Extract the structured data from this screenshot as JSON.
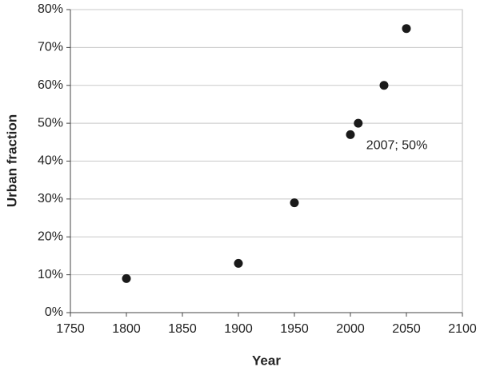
{
  "chart_data": {
    "type": "scatter",
    "x_label": "Year",
    "y_label": "Urban fraction",
    "x": [
      1800,
      1900,
      1950,
      2000,
      2007,
      2030,
      2050
    ],
    "values": [
      9,
      13,
      29,
      47,
      50,
      60,
      75
    ],
    "color": "#1a1a1a",
    "annotation": "2007; 50%",
    "xlim": [
      1750,
      2100
    ],
    "xticks": [
      1750,
      1800,
      1850,
      1900,
      1950,
      2000,
      2050,
      2100
    ],
    "ylim": [
      0,
      80
    ],
    "yticks": [
      {
        "value": 0,
        "label": "0%"
      },
      {
        "value": 10,
        "label": "10%"
      },
      {
        "value": 20,
        "label": "20%"
      },
      {
        "value": 30,
        "label": "30%"
      },
      {
        "value": 40,
        "label": "40%"
      },
      {
        "value": 50,
        "label": "50%"
      },
      {
        "value": 60,
        "label": "60%"
      },
      {
        "value": 70,
        "label": "70%"
      },
      {
        "value": 80,
        "label": "80%"
      }
    ],
    "grid": true
  }
}
